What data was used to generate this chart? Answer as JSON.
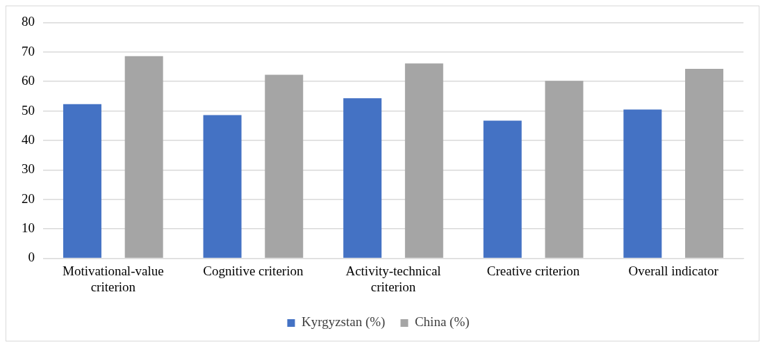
{
  "chart_data": {
    "type": "bar",
    "categories": [
      "Motivational-value criterion",
      "Cognitive criterion",
      "Activity-technical criterion",
      "Creative criterion",
      "Overall indicator"
    ],
    "series": [
      {
        "name": "Kyrgyzstan (%)",
        "color": "#4472c4",
        "values": [
          52.3,
          48.6,
          54.3,
          46.7,
          50.5
        ]
      },
      {
        "name": "China (%)",
        "color": "#a5a5a5",
        "values": [
          68.6,
          62.3,
          66.1,
          60.2,
          64.3
        ]
      }
    ],
    "ylim": [
      0,
      80
    ],
    "yticks": [
      0,
      10,
      20,
      30,
      40,
      50,
      60,
      70,
      80
    ],
    "grid": "y",
    "legend": "bottom"
  }
}
